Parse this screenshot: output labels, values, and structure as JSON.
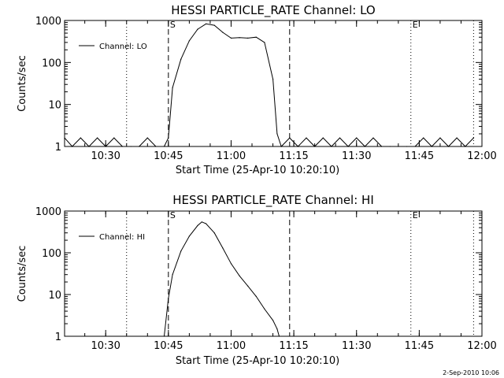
{
  "timestamp": "2-Sep-2010 10:06",
  "chart_data": [
    {
      "type": "line",
      "title": "HESSI PARTICLE_RATE Channel: LO",
      "xlabel": "Start Time (25-Apr-10 10:20:10)",
      "ylabel": "Counts/sec",
      "y_scale": "log",
      "ylim": [
        1,
        1000
      ],
      "xlim": [
        "10:20:10",
        "12:00:00"
      ],
      "x_ticks": [
        "10:30",
        "10:45",
        "11:00",
        "11:15",
        "11:30",
        "11:45",
        "12:00"
      ],
      "y_ticks": [
        "1",
        "10",
        "100",
        "1000"
      ],
      "legend": {
        "position": "top-left",
        "entries": [
          "Channel: LO"
        ]
      },
      "series": [
        {
          "name": "Channel: LO",
          "x": [
            "10:20:10",
            "10:22",
            "10:24",
            "10:26",
            "10:28",
            "10:30",
            "10:32",
            "10:34",
            "10:36",
            "10:38",
            "10:40",
            "10:42",
            "10:44",
            "10:45",
            "10:46",
            "10:48",
            "10:50",
            "10:52",
            "10:54",
            "10:56",
            "10:58",
            "11:00",
            "11:02",
            "11:04",
            "11:06",
            "11:08",
            "11:10",
            "11:11",
            "11:12",
            "11:14",
            "11:16",
            "11:18",
            "11:20",
            "11:22",
            "11:24",
            "11:26",
            "11:28",
            "11:30",
            "11:32",
            "11:34",
            "11:36",
            "11:38",
            "11:40",
            "11:42",
            "11:44",
            "11:46",
            "11:48",
            "11:50",
            "11:52",
            "11:54",
            "11:56",
            "11:58"
          ],
          "y": [
            1.6,
            1,
            1.6,
            1,
            1.6,
            1,
            1.6,
            1,
            1,
            1,
            1.6,
            1,
            1,
            1.6,
            25,
            120,
            330,
            620,
            830,
            770,
            520,
            380,
            390,
            380,
            400,
            300,
            40,
            2,
            1,
            1.6,
            1,
            1.6,
            1,
            1.6,
            1,
            1.6,
            1,
            1.6,
            1,
            1.6,
            1,
            1,
            1,
            1,
            1,
            1.6,
            1,
            1.6,
            1,
            1.6,
            1,
            1.6
          ]
        }
      ],
      "markers": [
        {
          "label": "S",
          "time": "10:45",
          "style": "dashed"
        },
        {
          "label": "",
          "time": "11:14",
          "style": "dashed"
        },
        {
          "label": "",
          "time": "10:35",
          "style": "dotted"
        },
        {
          "label": "E",
          "time": "11:43",
          "style": "dotted"
        },
        {
          "label": "",
          "time": "11:58",
          "style": "dotted"
        }
      ]
    },
    {
      "type": "line",
      "title": "HESSI PARTICLE_RATE Channel: HI",
      "xlabel": "Start Time (25-Apr-10 10:20:10)",
      "ylabel": "Counts/sec",
      "y_scale": "log",
      "ylim": [
        1,
        1000
      ],
      "xlim": [
        "10:20:10",
        "12:00:00"
      ],
      "x_ticks": [
        "10:30",
        "10:45",
        "11:00",
        "11:15",
        "11:30",
        "11:45",
        "12:00"
      ],
      "y_ticks": [
        "1",
        "10",
        "100",
        "1000"
      ],
      "legend": {
        "position": "top-left",
        "entries": [
          "Channel: HI"
        ]
      },
      "series": [
        {
          "name": "Channel: HI",
          "x": [
            "10:44",
            "10:45",
            "10:46",
            "10:48",
            "10:50",
            "10:52",
            "10:53",
            "10:54",
            "10:56",
            "10:58",
            "11:00",
            "11:02",
            "11:04",
            "11:06",
            "11:08",
            "11:10",
            "11:11",
            "11:11:30"
          ],
          "y": [
            1,
            8,
            30,
            110,
            250,
            450,
            550,
            500,
            300,
            130,
            55,
            28,
            16,
            9,
            4.5,
            2.4,
            1.5,
            1
          ]
        }
      ],
      "markers": [
        {
          "label": "S",
          "time": "10:45",
          "style": "dashed"
        },
        {
          "label": "",
          "time": "11:14",
          "style": "dashed"
        },
        {
          "label": "",
          "time": "10:35",
          "style": "dotted"
        },
        {
          "label": "E",
          "time": "11:43",
          "style": "dotted"
        },
        {
          "label": "",
          "time": "11:58",
          "style": "dotted"
        }
      ]
    }
  ]
}
